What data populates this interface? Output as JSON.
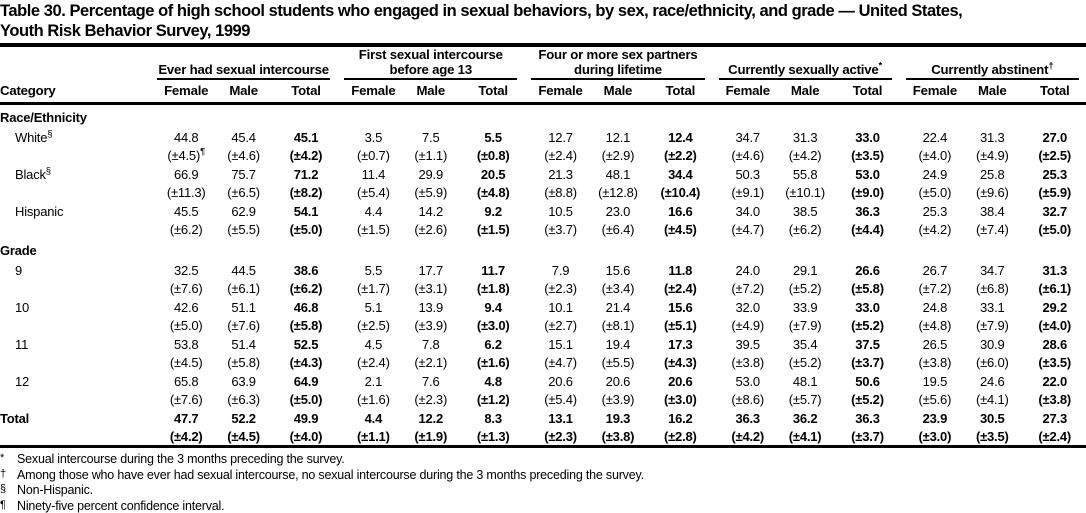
{
  "title": {
    "line1": "Table 30. Percentage of high school students who engaged in sexual behaviors, by sex, race/ethnicity, and grade — United States,",
    "line2": "Youth Risk Behavior Survey, 1999"
  },
  "table": {
    "category_header": "Category",
    "groups": [
      {
        "label": "Ever had sexual intercourse",
        "sup": ""
      },
      {
        "label": "First sexual intercourse before age 13",
        "sup": ""
      },
      {
        "label": "Four or more sex partners during lifetime",
        "sup": ""
      },
      {
        "label": "Currently sexually active",
        "sup": "*"
      },
      {
        "label": "Currently abstinent",
        "sup": "†"
      }
    ],
    "sub_headers": [
      "Female",
      "Male",
      "Total"
    ],
    "rows": [
      {
        "type": "section",
        "label": "Race/Ethnicity"
      },
      {
        "type": "data",
        "label": "White",
        "sup": "§",
        "values": [
          "44.8",
          "45.4",
          "45.1",
          "3.5",
          "7.5",
          "5.5",
          "12.7",
          "12.1",
          "12.4",
          "34.7",
          "31.3",
          "33.0",
          "22.4",
          "31.3",
          "27.0"
        ],
        "ci": [
          "(±4.5)",
          "(±4.6)",
          "(±4.2)",
          "(±0.7)",
          "(±1.1)",
          "(±0.8)",
          "(±2.4)",
          "(±2.9)",
          "(±2.2)",
          "(±4.6)",
          "(±4.2)",
          "(±3.5)",
          "(±4.0)",
          "(±4.9)",
          "(±2.5)"
        ],
        "ci_sups": {
          "0": "¶"
        }
      },
      {
        "type": "data",
        "label": "Black",
        "sup": "§",
        "values": [
          "66.9",
          "75.7",
          "71.2",
          "11.4",
          "29.9",
          "20.5",
          "21.3",
          "48.1",
          "34.4",
          "50.3",
          "55.8",
          "53.0",
          "24.9",
          "25.8",
          "25.3"
        ],
        "ci": [
          "(±11.3)",
          "(±6.5)",
          "(±8.2)",
          "(±5.4)",
          "(±5.9)",
          "(±4.8)",
          "(±8.8)",
          "(±12.8)",
          "(±10.4)",
          "(±9.1)",
          "(±10.1)",
          "(±9.0)",
          "(±5.0)",
          "(±9.6)",
          "(±5.9)"
        ]
      },
      {
        "type": "data",
        "label": "Hispanic",
        "sup": "",
        "values": [
          "45.5",
          "62.9",
          "54.1",
          "4.4",
          "14.2",
          "9.2",
          "10.5",
          "23.0",
          "16.6",
          "34.0",
          "38.5",
          "36.3",
          "25.3",
          "38.4",
          "32.7"
        ],
        "ci": [
          "(±6.2)",
          "(±5.5)",
          "(±5.0)",
          "(±1.5)",
          "(±2.6)",
          "(±1.5)",
          "(±3.7)",
          "(±6.4)",
          "(±4.5)",
          "(±4.7)",
          "(±6.2)",
          "(±4.4)",
          "(±4.2)",
          "(±7.4)",
          "(±5.0)"
        ]
      },
      {
        "type": "section",
        "label": "Grade"
      },
      {
        "type": "data",
        "label": "9",
        "sup": "",
        "values": [
          "32.5",
          "44.5",
          "38.6",
          "5.5",
          "17.7",
          "11.7",
          "7.9",
          "15.6",
          "11.8",
          "24.0",
          "29.1",
          "26.6",
          "26.7",
          "34.7",
          "31.3"
        ],
        "ci": [
          "(±7.6)",
          "(±6.1)",
          "(±6.2)",
          "(±1.7)",
          "(±3.1)",
          "(±1.8)",
          "(±2.3)",
          "(±3.4)",
          "(±2.4)",
          "(±7.2)",
          "(±5.2)",
          "(±5.8)",
          "(±7.2)",
          "(±6.8)",
          "(±6.1)"
        ]
      },
      {
        "type": "data",
        "label": "10",
        "sup": "",
        "values": [
          "42.6",
          "51.1",
          "46.8",
          "5.1",
          "13.9",
          "9.4",
          "10.1",
          "21.4",
          "15.6",
          "32.0",
          "33.9",
          "33.0",
          "24.8",
          "33.1",
          "29.2"
        ],
        "ci": [
          "(±5.0)",
          "(±7.6)",
          "(±5.8)",
          "(±2.5)",
          "(±3.9)",
          "(±3.0)",
          "(±2.7)",
          "(±8.1)",
          "(±5.1)",
          "(±4.9)",
          "(±7.9)",
          "(±5.2)",
          "(±4.8)",
          "(±7.9)",
          "(±4.0)"
        ]
      },
      {
        "type": "data",
        "label": "11",
        "sup": "",
        "values": [
          "53.8",
          "51.4",
          "52.5",
          "4.5",
          "7.8",
          "6.2",
          "15.1",
          "19.4",
          "17.3",
          "39.5",
          "35.4",
          "37.5",
          "26.5",
          "30.9",
          "28.6"
        ],
        "ci": [
          "(±4.5)",
          "(±5.8)",
          "(±4.3)",
          "(±2.4)",
          "(±2.1)",
          "(±1.6)",
          "(±4.7)",
          "(±5.5)",
          "(±4.3)",
          "(±3.8)",
          "(±5.2)",
          "(±3.7)",
          "(±3.8)",
          "(±6.0)",
          "(±3.5)"
        ]
      },
      {
        "type": "data",
        "label": "12",
        "sup": "",
        "values": [
          "65.8",
          "63.9",
          "64.9",
          "2.1",
          "7.6",
          "4.8",
          "20.6",
          "20.6",
          "20.6",
          "53.0",
          "48.1",
          "50.6",
          "19.5",
          "24.6",
          "22.0"
        ],
        "ci": [
          "(±7.6)",
          "(±6.3)",
          "(±5.0)",
          "(±1.6)",
          "(±2.3)",
          "(±1.2)",
          "(±5.4)",
          "(±3.9)",
          "(±3.0)",
          "(±8.6)",
          "(±5.7)",
          "(±5.2)",
          "(±5.6)",
          "(±4.1)",
          "(±3.8)"
        ]
      },
      {
        "type": "total",
        "label": "Total",
        "sup": "",
        "values": [
          "47.7",
          "52.2",
          "49.9",
          "4.4",
          "12.2",
          "8.3",
          "13.1",
          "19.3",
          "16.2",
          "36.3",
          "36.2",
          "36.3",
          "23.9",
          "30.5",
          "27.3"
        ],
        "ci": [
          "(±4.2)",
          "(±4.5)",
          "(±4.0)",
          "(±1.1)",
          "(±1.9)",
          "(±1.3)",
          "(±2.3)",
          "(±3.8)",
          "(±2.8)",
          "(±4.2)",
          "(±4.1)",
          "(±3.7)",
          "(±3.0)",
          "(±3.5)",
          "(±2.4)"
        ]
      }
    ]
  },
  "footnotes": [
    {
      "marker": "*",
      "text": "Sexual intercourse during the 3 months preceding the survey."
    },
    {
      "marker": "†",
      "text": "Among those who have ever had sexual intercourse, no sexual intercourse during the 3 months preceding the survey."
    },
    {
      "marker": "§",
      "text": "Non-Hispanic."
    },
    {
      "marker": "¶",
      "text": "Ninety-five percent confidence interval."
    }
  ]
}
